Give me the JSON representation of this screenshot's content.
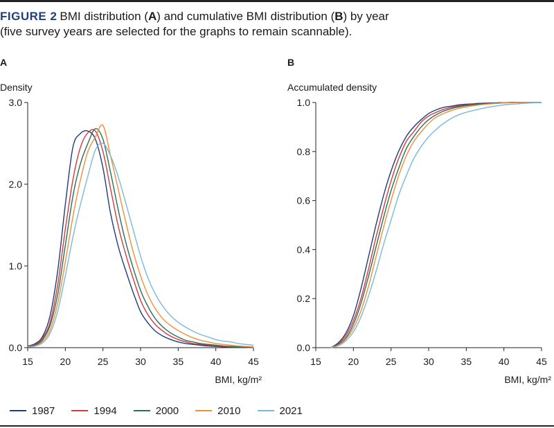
{
  "figure": {
    "label": "FIGURE 2",
    "title_parts": [
      {
        "text": "BMI distribution (",
        "bold": false
      },
      {
        "text": "A",
        "bold": true
      },
      {
        "text": ") and cumulative BMI distribution (",
        "bold": false
      },
      {
        "text": "B",
        "bold": true
      },
      {
        "text": ") by year",
        "bold": false
      }
    ],
    "subtitle": "(five survey years are selected for the graphs to remain scannable)."
  },
  "legend": [
    {
      "name": "1987",
      "color": "#1d3b78"
    },
    {
      "name": "1994",
      "color": "#d2393f"
    },
    {
      "name": "2000",
      "color": "#2a6e57"
    },
    {
      "name": "2010",
      "color": "#f08d37"
    },
    {
      "name": "2021",
      "color": "#7ab7dd"
    }
  ],
  "chart_data": [
    {
      "panel": "A",
      "type": "line",
      "ylabel": "Density",
      "xlabel": "BMI, kg/m²",
      "xlim": [
        15,
        45
      ],
      "ylim": [
        0,
        3.0
      ],
      "xticks": [
        "15",
        "20",
        "25",
        "30",
        "35",
        "40",
        "45"
      ],
      "yticks": [
        "0.0",
        "1.0",
        "2.0",
        "3.0"
      ],
      "grid": false,
      "series": [
        {
          "name": "1987",
          "x": [
            15,
            16,
            17,
            18,
            19,
            20,
            21,
            22,
            23,
            24,
            25,
            26,
            27,
            28,
            29,
            30,
            31,
            32,
            33,
            34,
            35,
            36,
            37,
            38,
            39,
            40,
            41,
            42,
            43,
            44,
            45
          ],
          "y": [
            0.02,
            0.05,
            0.14,
            0.4,
            0.95,
            1.75,
            2.45,
            2.62,
            2.65,
            2.55,
            2.2,
            1.65,
            1.25,
            0.95,
            0.68,
            0.44,
            0.3,
            0.2,
            0.14,
            0.1,
            0.07,
            0.05,
            0.04,
            0.03,
            0.02,
            0.015,
            0.01,
            0.008,
            0.006,
            0.004,
            0.003
          ]
        },
        {
          "name": "1994",
          "x": [
            15,
            16,
            17,
            18,
            19,
            20,
            21,
            22,
            23,
            24,
            25,
            26,
            27,
            28,
            29,
            30,
            31,
            32,
            33,
            34,
            35,
            36,
            37,
            38,
            39,
            40,
            41,
            42,
            43,
            44,
            45
          ],
          "y": [
            0.02,
            0.04,
            0.12,
            0.32,
            0.78,
            1.45,
            2.05,
            2.45,
            2.63,
            2.65,
            2.4,
            1.95,
            1.5,
            1.15,
            0.85,
            0.58,
            0.4,
            0.28,
            0.2,
            0.14,
            0.1,
            0.07,
            0.05,
            0.04,
            0.03,
            0.02,
            0.015,
            0.01,
            0.008,
            0.006,
            0.004
          ]
        },
        {
          "name": "2000",
          "x": [
            15,
            16,
            17,
            18,
            19,
            20,
            21,
            22,
            23,
            24,
            25,
            26,
            27,
            28,
            29,
            30,
            31,
            32,
            33,
            34,
            35,
            36,
            37,
            38,
            39,
            40,
            41,
            42,
            43,
            44,
            45
          ],
          "y": [
            0.01,
            0.03,
            0.1,
            0.28,
            0.66,
            1.25,
            1.85,
            2.25,
            2.5,
            2.68,
            2.55,
            2.15,
            1.7,
            1.3,
            0.98,
            0.7,
            0.5,
            0.35,
            0.25,
            0.18,
            0.13,
            0.09,
            0.07,
            0.05,
            0.04,
            0.03,
            0.02,
            0.015,
            0.01,
            0.008,
            0.005
          ]
        },
        {
          "name": "2010",
          "x": [
            15,
            16,
            17,
            18,
            19,
            20,
            21,
            22,
            23,
            24,
            25,
            26,
            27,
            28,
            29,
            30,
            31,
            32,
            33,
            34,
            35,
            36,
            37,
            38,
            39,
            40,
            41,
            42,
            43,
            44,
            45
          ],
          "y": [
            0.01,
            0.02,
            0.08,
            0.22,
            0.55,
            1.05,
            1.6,
            2.05,
            2.4,
            2.58,
            2.72,
            2.35,
            1.95,
            1.55,
            1.18,
            0.88,
            0.64,
            0.47,
            0.35,
            0.27,
            0.21,
            0.16,
            0.12,
            0.09,
            0.07,
            0.05,
            0.04,
            0.03,
            0.02,
            0.015,
            0.01
          ]
        },
        {
          "name": "2021",
          "x": [
            15,
            16,
            17,
            18,
            19,
            20,
            21,
            22,
            23,
            24,
            25,
            26,
            27,
            28,
            29,
            30,
            31,
            32,
            33,
            34,
            35,
            36,
            37,
            38,
            39,
            40,
            41,
            42,
            43,
            44,
            45
          ],
          "y": [
            0.01,
            0.02,
            0.06,
            0.18,
            0.45,
            0.88,
            1.35,
            1.75,
            2.1,
            2.42,
            2.5,
            2.35,
            2.1,
            1.78,
            1.45,
            1.12,
            0.85,
            0.65,
            0.5,
            0.39,
            0.31,
            0.25,
            0.2,
            0.16,
            0.13,
            0.1,
            0.08,
            0.07,
            0.05,
            0.04,
            0.03
          ]
        }
      ]
    },
    {
      "panel": "B",
      "type": "line",
      "ylabel": "Accumulated density",
      "xlabel": "BMI, kg/m²",
      "xlim": [
        15,
        45
      ],
      "ylim": [
        0,
        1.0
      ],
      "xticks": [
        "15",
        "20",
        "25",
        "30",
        "35",
        "40",
        "45"
      ],
      "yticks": [
        "0.0",
        "0.2",
        "0.4",
        "0.6",
        "0.8",
        "1.0"
      ],
      "grid": false,
      "series": [
        {
          "name": "1987",
          "x": [
            17,
            18,
            19,
            20,
            21,
            22,
            23,
            24,
            25,
            26,
            27,
            28,
            29,
            30,
            31,
            32,
            33,
            34,
            35,
            36,
            37,
            38,
            39,
            40,
            41,
            42,
            43,
            44,
            45
          ],
          "y": [
            0.0,
            0.02,
            0.06,
            0.13,
            0.24,
            0.37,
            0.5,
            0.62,
            0.72,
            0.8,
            0.86,
            0.9,
            0.93,
            0.955,
            0.97,
            0.98,
            0.985,
            0.99,
            0.993,
            0.995,
            0.997,
            0.998,
            0.999,
            0.999,
            1.0,
            1.0,
            1.0,
            1.0,
            1.0
          ]
        },
        {
          "name": "1994",
          "x": [
            17,
            18,
            19,
            20,
            21,
            22,
            23,
            24,
            25,
            26,
            27,
            28,
            29,
            30,
            31,
            32,
            33,
            34,
            35,
            36,
            37,
            38,
            39,
            40,
            41,
            42,
            43,
            44,
            45
          ],
          "y": [
            0.0,
            0.015,
            0.05,
            0.11,
            0.2,
            0.32,
            0.45,
            0.57,
            0.68,
            0.77,
            0.84,
            0.88,
            0.92,
            0.945,
            0.96,
            0.972,
            0.98,
            0.986,
            0.99,
            0.993,
            0.995,
            0.997,
            0.998,
            0.999,
            1.0,
            1.0,
            1.0,
            1.0,
            1.0
          ]
        },
        {
          "name": "2000",
          "x": [
            17,
            18,
            19,
            20,
            21,
            22,
            23,
            24,
            25,
            26,
            27,
            28,
            29,
            30,
            31,
            32,
            33,
            34,
            35,
            36,
            37,
            38,
            39,
            40,
            41,
            42,
            43,
            44,
            45
          ],
          "y": [
            0.0,
            0.012,
            0.04,
            0.095,
            0.18,
            0.29,
            0.41,
            0.53,
            0.64,
            0.73,
            0.81,
            0.86,
            0.9,
            0.93,
            0.95,
            0.965,
            0.975,
            0.982,
            0.987,
            0.991,
            0.994,
            0.996,
            0.998,
            0.999,
            1.0,
            1.0,
            1.0,
            1.0,
            1.0
          ]
        },
        {
          "name": "2010",
          "x": [
            17,
            18,
            19,
            20,
            21,
            22,
            23,
            24,
            25,
            26,
            27,
            28,
            29,
            30,
            31,
            32,
            33,
            34,
            35,
            36,
            37,
            38,
            39,
            40,
            41,
            42,
            43,
            44,
            45
          ],
          "y": [
            0.0,
            0.01,
            0.035,
            0.08,
            0.15,
            0.25,
            0.37,
            0.49,
            0.6,
            0.7,
            0.78,
            0.84,
            0.88,
            0.915,
            0.94,
            0.955,
            0.967,
            0.976,
            0.982,
            0.987,
            0.991,
            0.994,
            0.996,
            0.998,
            0.999,
            1.0,
            1.0,
            1.0,
            1.0
          ]
        },
        {
          "name": "2021",
          "x": [
            17,
            18,
            19,
            20,
            21,
            22,
            23,
            24,
            25,
            26,
            27,
            28,
            29,
            30,
            31,
            32,
            33,
            34,
            35,
            36,
            37,
            38,
            39,
            40,
            41,
            42,
            43,
            44,
            45
          ],
          "y": [
            0.0,
            0.008,
            0.028,
            0.065,
            0.125,
            0.21,
            0.31,
            0.42,
            0.52,
            0.62,
            0.7,
            0.77,
            0.82,
            0.86,
            0.89,
            0.915,
            0.935,
            0.95,
            0.96,
            0.968,
            0.975,
            0.981,
            0.986,
            0.99,
            0.993,
            0.995,
            0.997,
            0.999,
            1.0
          ]
        }
      ]
    }
  ]
}
